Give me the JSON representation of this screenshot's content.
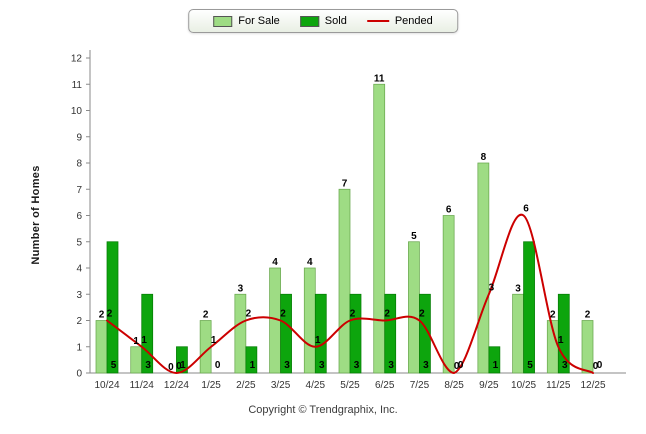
{
  "footer": {
    "copyright": "Copyright © Trendgraphix, Inc."
  },
  "chart_data": {
    "type": "bar",
    "title": "",
    "categories": [
      "10/24",
      "11/24",
      "12/24",
      "1/25",
      "2/25",
      "3/25",
      "4/25",
      "5/25",
      "6/25",
      "7/25",
      "8/25",
      "9/25",
      "10/25",
      "11/25",
      "12/25"
    ],
    "series": [
      {
        "name": "For Sale",
        "type": "bar",
        "color": "#9edc84",
        "border_color": "#6aa84f",
        "values": [
          2,
          1,
          0,
          2,
          3,
          4,
          4,
          7,
          11,
          5,
          6,
          8,
          3,
          2,
          2
        ]
      },
      {
        "name": "Sold",
        "type": "bar",
        "color": "#0da50d",
        "border_color": "#067d06",
        "values": [
          5,
          3,
          1,
          0,
          1,
          3,
          3,
          3,
          3,
          3,
          0,
          1,
          5,
          3,
          0
        ]
      },
      {
        "name": "Pended",
        "type": "line",
        "color": "#cc0000",
        "values": [
          2,
          1,
          0,
          1,
          2,
          2,
          1,
          2,
          2,
          2,
          0,
          3,
          6,
          1,
          0
        ]
      }
    ],
    "xlabel": "",
    "ylabel": "Number of Homes",
    "ylim": [
      0,
      12
    ],
    "ytick_step": 1,
    "grid": false,
    "legend_position": "top"
  }
}
